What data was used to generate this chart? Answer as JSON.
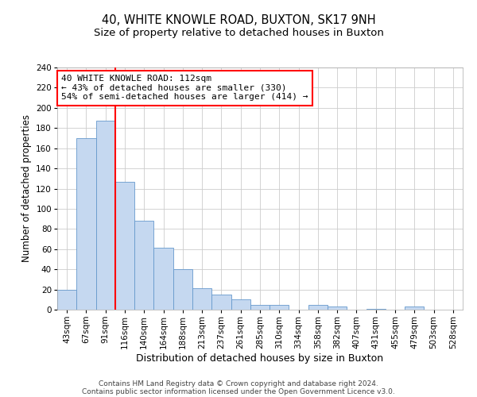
{
  "title": "40, WHITE KNOWLE ROAD, BUXTON, SK17 9NH",
  "subtitle": "Size of property relative to detached houses in Buxton",
  "xlabel": "Distribution of detached houses by size in Buxton",
  "ylabel": "Number of detached properties",
  "bin_labels": [
    "43sqm",
    "67sqm",
    "91sqm",
    "116sqm",
    "140sqm",
    "164sqm",
    "188sqm",
    "213sqm",
    "237sqm",
    "261sqm",
    "285sqm",
    "310sqm",
    "334sqm",
    "358sqm",
    "382sqm",
    "407sqm",
    "431sqm",
    "455sqm",
    "479sqm",
    "503sqm",
    "528sqm"
  ],
  "bar_heights": [
    20,
    170,
    187,
    127,
    88,
    61,
    40,
    21,
    15,
    10,
    5,
    5,
    0,
    5,
    3,
    0,
    1,
    0,
    3,
    0,
    0
  ],
  "bar_color": "#c5d8f0",
  "bar_edge_color": "#6699cc",
  "vline_color": "red",
  "annotation_text": "40 WHITE KNOWLE ROAD: 112sqm\n← 43% of detached houses are smaller (330)\n54% of semi-detached houses are larger (414) →",
  "annotation_box_color": "white",
  "annotation_box_edge_color": "red",
  "ylim": [
    0,
    240
  ],
  "yticks": [
    0,
    20,
    40,
    60,
    80,
    100,
    120,
    140,
    160,
    180,
    200,
    220,
    240
  ],
  "footer_line1": "Contains HM Land Registry data © Crown copyright and database right 2024.",
  "footer_line2": "Contains public sector information licensed under the Open Government Licence v3.0.",
  "bg_color": "#ffffff",
  "grid_color": "#cccccc",
  "title_fontsize": 10.5,
  "subtitle_fontsize": 9.5,
  "ylabel_fontsize": 8.5,
  "xlabel_fontsize": 9,
  "tick_fontsize": 7.5,
  "annot_fontsize": 8,
  "footer_fontsize": 6.5
}
